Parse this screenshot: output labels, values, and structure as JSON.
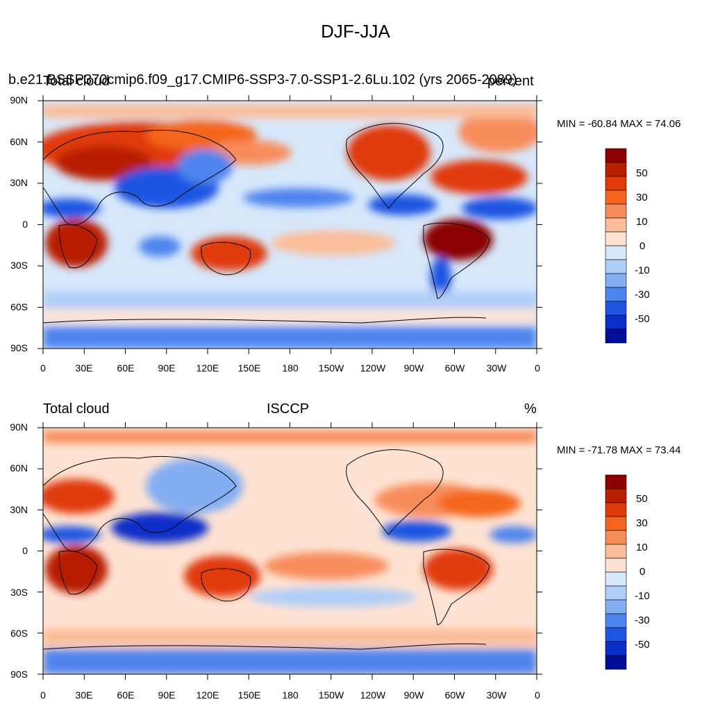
{
  "title": "DJF-JJA",
  "panels": [
    {
      "case_label": "b.e21.BSSP370cmip6.f09_g17.CMIP6-SSP3-7.0-SSP1-2.6Lu.102 (yrs 2065-2089)",
      "left_title": "Total cloud",
      "right_title": "percent",
      "min_max": "MIN = -60.84 MAX =  74.06"
    },
    {
      "left_title": "Total cloud",
      "center_title": "ISCCP",
      "right_title": "%",
      "min_max": "MIN = -71.78 MAX =  73.44"
    }
  ],
  "lat_labels": [
    "90N",
    "60N",
    "30N",
    "0",
    "30S",
    "60S",
    "90S"
  ],
  "lon_labels": [
    "0",
    "30E",
    "60E",
    "90E",
    "120E",
    "150E",
    "180",
    "150W",
    "120W",
    "90W",
    "60W",
    "30W",
    "0"
  ],
  "colorbar": {
    "labels": [
      "50",
      "30",
      "10",
      "0",
      "-10",
      "-30",
      "-50"
    ],
    "colors": [
      "#8b0000",
      "#b81e00",
      "#e03a0a",
      "#f4661f",
      "#f88d5c",
      "#fbbd9a",
      "#fee3d3",
      "#d7e8fb",
      "#afcef8",
      "#84aef2",
      "#4f84ee",
      "#1f55e2",
      "#0a2fc9",
      "#000d96"
    ]
  },
  "colors": {
    "land_outline": "#000000",
    "ocean_base": "#d7e8fb"
  }
}
